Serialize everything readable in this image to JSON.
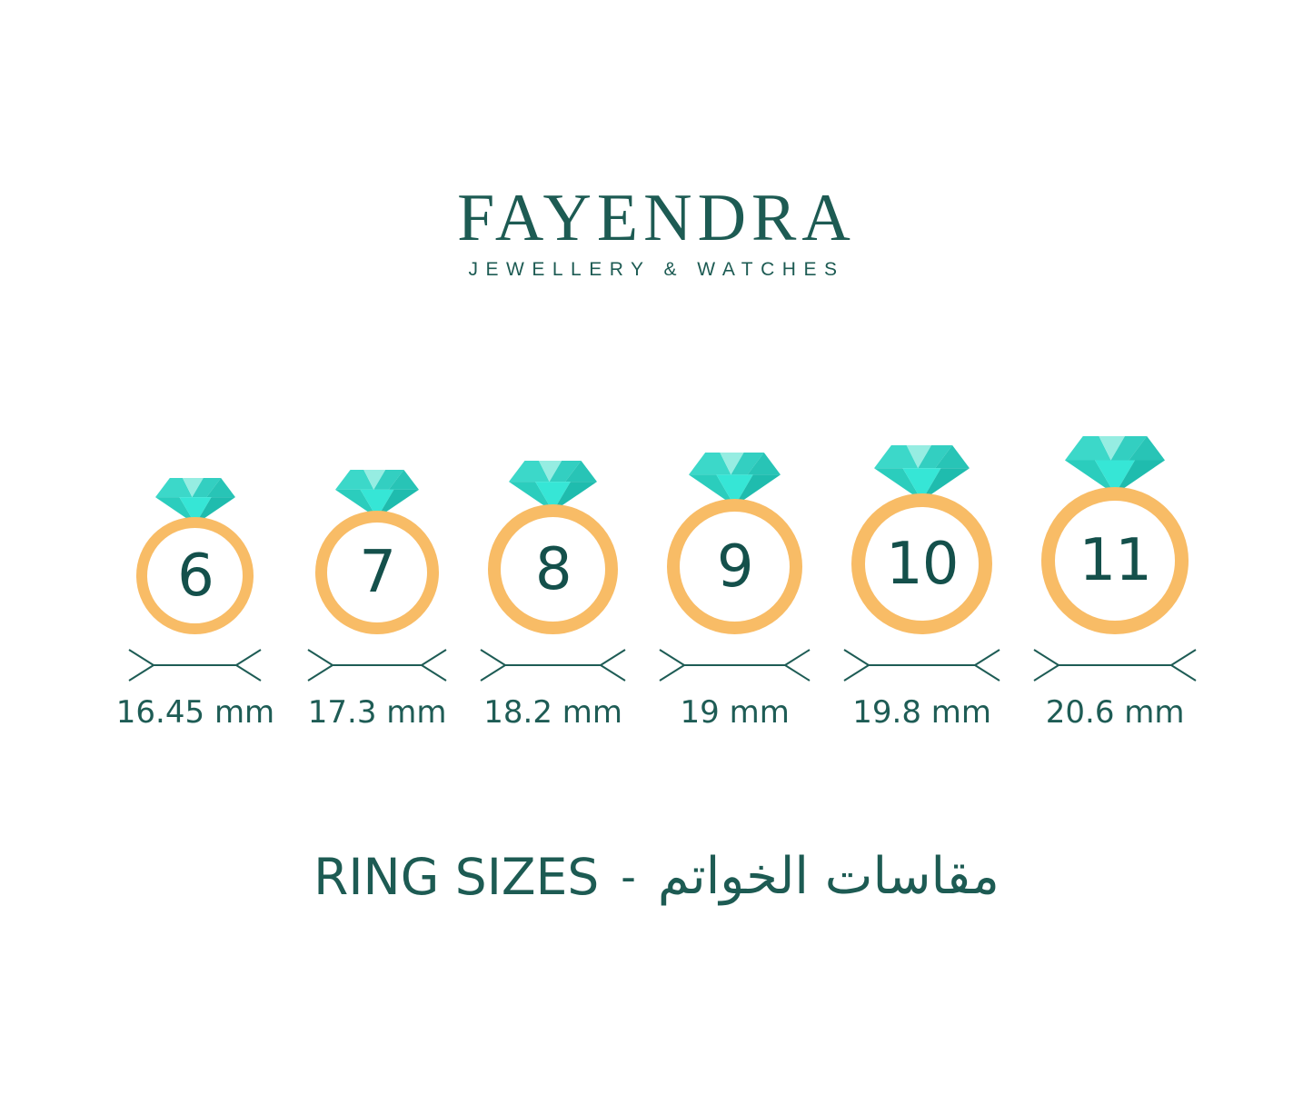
{
  "brand": {
    "name": "FAYENDRA",
    "tagline": "JEWELLERY & WATCHES"
  },
  "rings": [
    {
      "size_label": "6",
      "diameter_label": "16.45 mm",
      "diameter_mm": 16.45
    },
    {
      "size_label": "7",
      "diameter_label": "17.3 mm",
      "diameter_mm": 17.3
    },
    {
      "size_label": "8",
      "diameter_label": "18.2 mm",
      "diameter_mm": 18.2
    },
    {
      "size_label": "9",
      "diameter_label": "19 mm",
      "diameter_mm": 19.0
    },
    {
      "size_label": "10",
      "diameter_label": "19.8 mm",
      "diameter_mm": 19.8
    },
    {
      "size_label": "11",
      "diameter_label": "20.6 mm",
      "diameter_mm": 20.6
    }
  ],
  "title": {
    "en": "RING SIZES",
    "separator": "-",
    "ar": "مقاسات الخواتم"
  },
  "colors": {
    "brand_teal": "#1D5B53",
    "text_teal": "#1E5C55",
    "number_teal": "#14504B",
    "band_orange": "#F8BC66",
    "diamond": {
      "crown_left": "#3CD8C9",
      "crown_light": "#96EDE2",
      "crown_right": "#33CFC1",
      "crown_corner": "#28C4B6",
      "pavilion_left": "#2BCDBD",
      "pavilion_center": "#36E6D6",
      "pavilion_right": "#1FBCAE"
    }
  }
}
